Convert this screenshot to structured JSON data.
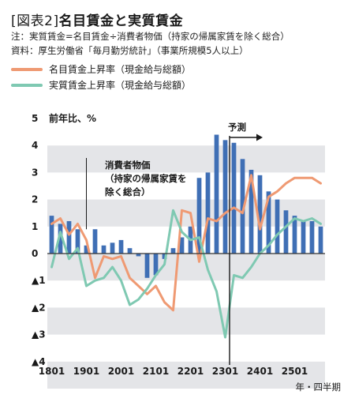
{
  "header": {
    "title_bracket": "[図表2]",
    "title_main": "名目賃金と実質賃金",
    "note": "注：実質賃金=名目賃金÷消費者物価（持家の帰属家賃を除く総合）",
    "source": "資料：厚生労働省「毎月勤労統計」（事業所規模5人以上）"
  },
  "legend": {
    "nominal": "名目賃金上昇率（現金給与総額）",
    "real": "実質賃金上昇率（現金給与総額）"
  },
  "colors": {
    "bar": "#3f6fb5",
    "nominal": "#ef9a73",
    "real": "#7fc9b2",
    "band": "#e4e5e8"
  },
  "chart_data": {
    "type": "bar",
    "ylabel": "前年比、%",
    "xlabel": "年・四半期",
    "ylim": [
      -4.5,
      5
    ],
    "y_ticks": [
      {
        "value": 5,
        "label": "5"
      },
      {
        "value": 4,
        "label": "4"
      },
      {
        "value": 3,
        "label": "3"
      },
      {
        "value": 2,
        "label": "2"
      },
      {
        "value": 1,
        "label": "1"
      },
      {
        "value": 0,
        "label": "0"
      },
      {
        "value": -1,
        "label": "▲1"
      },
      {
        "value": -2,
        "label": "▲2"
      },
      {
        "value": -3,
        "label": "▲3"
      },
      {
        "value": -4,
        "label": "▲4"
      }
    ],
    "x_ticks": [
      "1801",
      "1901",
      "2001",
      "2101",
      "2201",
      "2301",
      "2401",
      "2501"
    ],
    "categories": [
      "1801",
      "1802",
      "1803",
      "1804",
      "1901",
      "1902",
      "1903",
      "1904",
      "2001",
      "2002",
      "2003",
      "2004",
      "2101",
      "2102",
      "2103",
      "2104",
      "2201",
      "2202",
      "2203",
      "2204",
      "2301",
      "2302",
      "2303",
      "2304",
      "2401",
      "2402",
      "2403",
      "2404",
      "2501",
      "2502",
      "2503",
      "2504"
    ],
    "actual_count": 21,
    "forecast_label": "予測",
    "cpi_label": [
      "消費者物価",
      "（持家の帰属家賃を",
      "除く総合）"
    ],
    "series": [
      {
        "name": "消費者物価（持家の帰属家賃を除く総合）",
        "kind": "bar",
        "values": [
          1.4,
          1.1,
          1.2,
          0.9,
          0.3,
          0.9,
          0.3,
          0.4,
          0.5,
          0.2,
          -0.1,
          -0.9,
          -0.8,
          -0.2,
          0.2,
          0.6,
          1.0,
          2.8,
          3.0,
          4.4,
          4.2,
          4.1,
          3.5,
          3.1,
          2.9,
          2.3,
          2.0,
          1.6,
          1.4,
          1.2,
          1.2,
          1.0
        ]
      },
      {
        "name": "名目賃金上昇率（現金給与総額）",
        "kind": "line",
        "values": [
          1.1,
          1.3,
          0.7,
          1.1,
          0.5,
          -0.9,
          -0.1,
          -0.2,
          -0.1,
          -0.9,
          -1.2,
          -1.5,
          -1.2,
          -1.8,
          -2.1,
          1.6,
          1.5,
          -0.3,
          1.3,
          1.2,
          1.5,
          1.7,
          1.5,
          2.9,
          0.9,
          2.1,
          2.3,
          2.6,
          2.8,
          2.8,
          2.8,
          2.6
        ]
      },
      {
        "name": "実質賃金上昇率（現金給与総額）",
        "kind": "line",
        "values": [
          -0.5,
          0.8,
          -0.2,
          0.2,
          -1.2,
          -1.0,
          -0.9,
          -0.5,
          -1.0,
          -1.9,
          -1.7,
          -1.3,
          -0.8,
          -0.4,
          1.6,
          0.8,
          0.5,
          0.6,
          -0.6,
          -1.4,
          -3.1,
          -0.8,
          -0.9,
          -0.5,
          0.0,
          0.3,
          0.7,
          1.0,
          1.3,
          1.2,
          1.3,
          1.1
        ]
      }
    ]
  }
}
